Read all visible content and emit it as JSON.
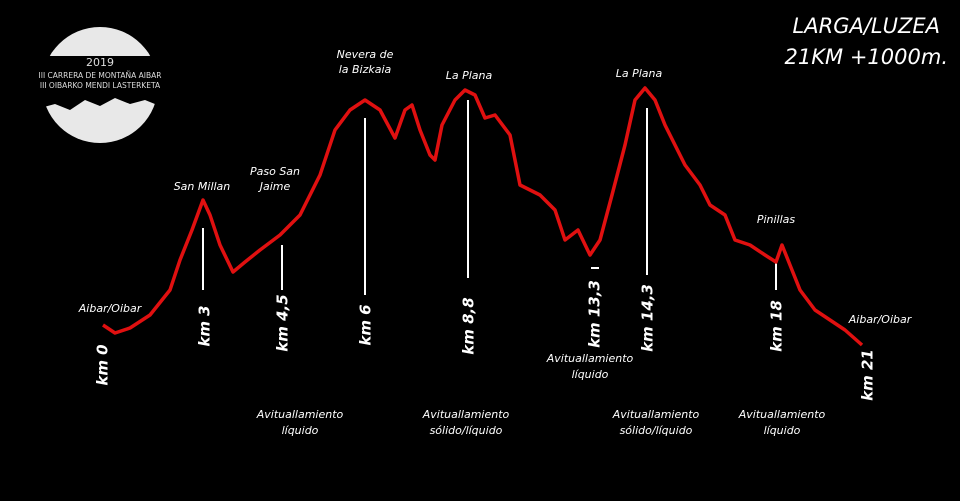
{
  "header": {
    "title": "LARGA/LUZEA",
    "subtitle": "21KM +1000m."
  },
  "logo": {
    "year": "2019",
    "line1": "III CARRERA DE MONTAÑA AIBAR",
    "line2": "III OIBARKO MENDI LASTERKETA"
  },
  "places": [
    {
      "lines": [
        "Aibar/Oibar"
      ]
    },
    {
      "lines": [
        "San Millan"
      ]
    },
    {
      "lines": [
        "Paso San",
        "Jaime"
      ]
    },
    {
      "lines": [
        "Nevera de",
        "la Bizkaia"
      ]
    },
    {
      "lines": [
        "La Plana"
      ]
    },
    {
      "lines": [
        "La Plana"
      ]
    },
    {
      "lines": [
        "Pinillas"
      ]
    },
    {
      "lines": [
        "Aibar/Oibar"
      ]
    }
  ],
  "km_markers": [
    "km 0",
    "km 3",
    "km 4,5",
    "km 6",
    "km 8,8",
    "km 13,3",
    "km 14,3",
    "km 18",
    "km 21"
  ],
  "aid_stations": [
    {
      "lines": [
        "Avituallamiento",
        "líquido"
      ]
    },
    {
      "lines": [
        "Avituallamiento",
        "sólido/líquido"
      ]
    },
    {
      "lines": [
        "Avituallamiento",
        "líquido"
      ]
    },
    {
      "lines": [
        "Avituallamiento",
        "sólido/líquido"
      ]
    },
    {
      "lines": [
        "Avituallamiento",
        "líquido"
      ]
    }
  ]
}
